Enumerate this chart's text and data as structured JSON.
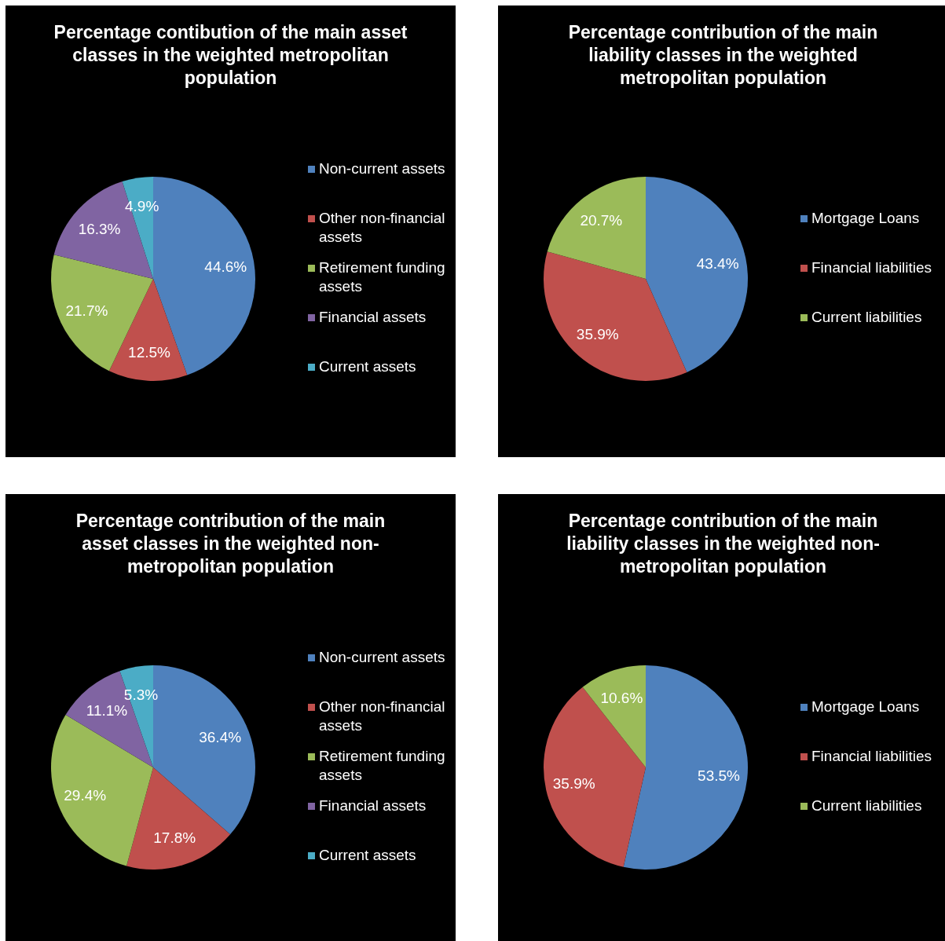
{
  "chart_data": [
    {
      "type": "pie",
      "title": "Percentage contibution of the main asset classes in the weighted metropolitan population",
      "categories": [
        "Non-current assets",
        "Other non-financial assets",
        "Retirement funding assets",
        "Financial assets",
        "Current assets"
      ],
      "values": [
        44.6,
        12.5,
        21.7,
        16.3,
        4.9
      ],
      "value_labels": [
        "44.6%",
        "12.5%",
        "21.7%",
        "16.3%",
        "4.9%"
      ],
      "colors": [
        "#4f81bd",
        "#c0504d",
        "#9bbb59",
        "#8064a2",
        "#4bacc6"
      ],
      "legend": "right"
    },
    {
      "type": "pie",
      "title": "Percentage contribution of the main liability classes in the weighted metropolitan population",
      "categories": [
        "Mortgage Loans",
        "Financial liabilities",
        "Current liabilities"
      ],
      "values": [
        43.4,
        35.9,
        20.7
      ],
      "value_labels": [
        "43.4%",
        "35.9%",
        "20.7%"
      ],
      "colors": [
        "#4f81bd",
        "#c0504d",
        "#9bbb59"
      ],
      "legend": "right"
    },
    {
      "type": "pie",
      "title": "Percentage contribution of the main asset classes in the weighted non-metropolitan population",
      "categories": [
        "Non-current assets",
        "Other non-financial assets",
        "Retirement funding assets",
        "Financial assets",
        "Current assets"
      ],
      "values": [
        36.4,
        17.8,
        29.4,
        11.1,
        5.3
      ],
      "value_labels": [
        "36.4%",
        "17.8%",
        "29.4%",
        "11.1%",
        "5.3%"
      ],
      "colors": [
        "#4f81bd",
        "#c0504d",
        "#9bbb59",
        "#8064a2",
        "#4bacc6"
      ],
      "legend": "right"
    },
    {
      "type": "pie",
      "title": "Percentage contribution of the main liability classes in the weighted non-metropolitan population",
      "categories": [
        "Mortgage Loans",
        "Financial liabilities",
        "Current liabilities"
      ],
      "values": [
        53.5,
        35.9,
        10.6
      ],
      "value_labels": [
        "53.5%",
        "35.9%",
        "10.6%"
      ],
      "colors": [
        "#4f81bd",
        "#c0504d",
        "#9bbb59"
      ],
      "legend": "right"
    }
  ]
}
